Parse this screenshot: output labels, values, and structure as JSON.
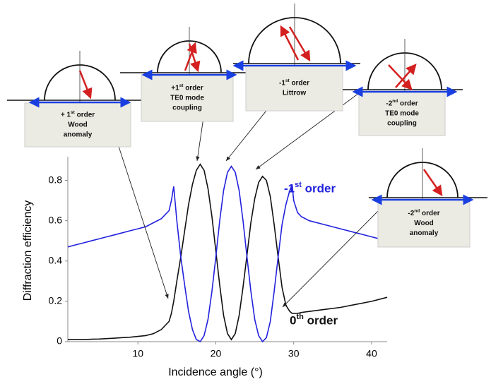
{
  "chart_data": {
    "type": "line",
    "x_label": "Incidence angle (°)",
    "y_label": "Diffraction efficiency",
    "xlim": [
      1,
      42
    ],
    "ylim": [
      0,
      0.9
    ],
    "xticks": [
      10,
      20,
      30,
      40
    ],
    "yticks": [
      0,
      0.2,
      0.4,
      0.6,
      0.8
    ],
    "x": [
      1,
      2,
      3,
      4,
      5,
      6,
      7,
      8,
      9,
      10,
      11,
      12,
      13,
      14,
      14.3,
      14.6,
      15,
      15.5,
      16,
      16.5,
      17,
      17.5,
      18,
      18.5,
      19,
      19.5,
      20,
      20.5,
      21,
      21.5,
      22,
      22.5,
      23,
      23.5,
      24,
      24.5,
      25,
      25.5,
      26,
      26.5,
      27,
      27.5,
      28,
      28.5,
      29,
      29.5,
      29.8,
      30,
      30.5,
      31,
      32,
      34,
      36,
      38,
      40,
      42
    ],
    "series": [
      {
        "name": "0th order",
        "color": "#111111",
        "values": [
          0.01,
          0.01,
          0.01,
          0.012,
          0.013,
          0.015,
          0.017,
          0.02,
          0.022,
          0.026,
          0.03,
          0.04,
          0.06,
          0.1,
          0.14,
          0.2,
          0.3,
          0.42,
          0.55,
          0.68,
          0.78,
          0.85,
          0.88,
          0.85,
          0.76,
          0.62,
          0.45,
          0.28,
          0.13,
          0.04,
          0.01,
          0.04,
          0.13,
          0.27,
          0.43,
          0.59,
          0.71,
          0.79,
          0.82,
          0.8,
          0.72,
          0.58,
          0.42,
          0.27,
          0.18,
          0.15,
          0.14,
          0.14,
          0.14,
          0.145,
          0.15,
          0.16,
          0.17,
          0.185,
          0.2,
          0.22
        ]
      },
      {
        "name": "-1st order",
        "color": "#2222dd",
        "values": [
          0.47,
          0.48,
          0.49,
          0.5,
          0.51,
          0.52,
          0.53,
          0.54,
          0.55,
          0.56,
          0.57,
          0.59,
          0.61,
          0.65,
          0.7,
          0.77,
          0.6,
          0.42,
          0.28,
          0.15,
          0.06,
          0.01,
          0.0,
          0.03,
          0.11,
          0.25,
          0.42,
          0.6,
          0.75,
          0.84,
          0.87,
          0.84,
          0.75,
          0.6,
          0.42,
          0.25,
          0.11,
          0.03,
          0.0,
          0.02,
          0.1,
          0.25,
          0.42,
          0.58,
          0.68,
          0.75,
          0.78,
          0.7,
          0.64,
          0.62,
          0.6,
          0.58,
          0.56,
          0.54,
          0.52,
          0.5
        ]
      }
    ],
    "annotations": [
      {
        "lines": [
          "+ 1st order",
          "Wood",
          "anomaly"
        ]
      },
      {
        "lines": [
          "+1st order",
          "TE0 mode",
          "coupling"
        ]
      },
      {
        "lines": [
          "-1st order",
          "Littrow"
        ]
      },
      {
        "lines": [
          "-2nd order",
          "TE0 mode",
          "coupling"
        ]
      },
      {
        "lines": [
          "-2nd order",
          "Wood",
          "anomaly"
        ]
      }
    ]
  }
}
